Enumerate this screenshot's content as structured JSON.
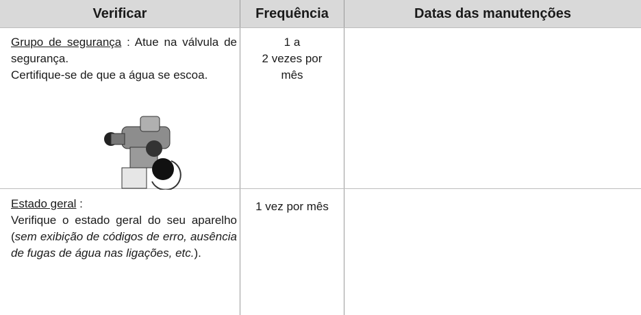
{
  "table": {
    "header": [
      "Verificar",
      "Frequência",
      "Datas das manutenções"
    ],
    "rows": [
      {
        "label": "Grupo de segurança",
        "label_suffix": " : ",
        "text": [
          "Atue na válvula de segurança.",
          "Certifique-se de que a água se escoa."
        ],
        "frequency": [
          "1 a",
          "2 vezes por",
          "mês"
        ]
      },
      {
        "label": "Estado geral",
        "label_suffix": " :",
        "text": [
          "Verifique o estado geral do seu aparelho (",
          "sem exibição de códigos de erro, ausência de fugas de água nas ligações, etc.",
          ")."
        ],
        "frequency": [
          "1 vez por mês"
        ]
      }
    ]
  }
}
